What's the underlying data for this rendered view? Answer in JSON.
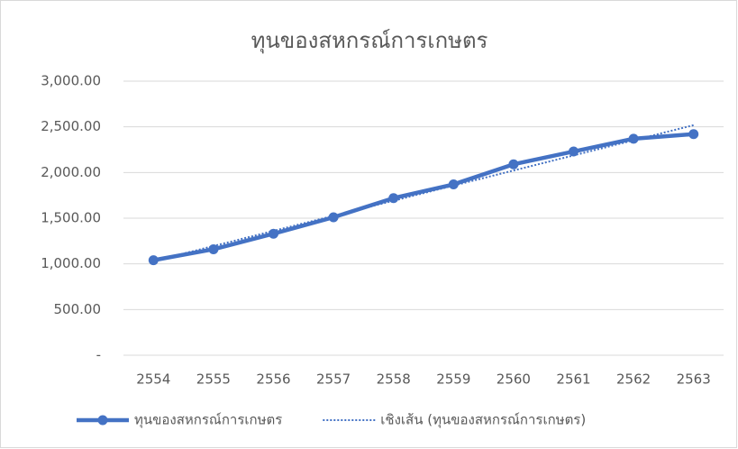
{
  "chart_data": {
    "type": "line",
    "title": "ทุนของสหกรณ์การเกษตร",
    "categories": [
      "2554",
      "2555",
      "2556",
      "2557",
      "2558",
      "2559",
      "2560",
      "2561",
      "2562",
      "2563"
    ],
    "series": [
      {
        "name": "ทุนของสหกรณ์การเกษตร",
        "color": "#4472c4",
        "values": [
          1040,
          1160,
          1330,
          1510,
          1720,
          1870,
          2090,
          2230,
          2370,
          2420
        ]
      },
      {
        "name": "เชิงเส้น (ทุนของสหกรณ์การเกษตร)",
        "color": "#4472c4",
        "dashed": true,
        "values": [
          1030,
          1195,
          1361,
          1526,
          1691,
          1857,
          2022,
          2187,
          2353,
          2518
        ]
      }
    ],
    "ylim": [
      0,
      3000
    ],
    "yticks": [
      {
        "value": 0,
        "label": "-"
      },
      {
        "value": 500,
        "label": "500.00"
      },
      {
        "value": 1000,
        "label": "1,000.00"
      },
      {
        "value": 1500,
        "label": "1,500.00"
      },
      {
        "value": 2000,
        "label": "2,000.00"
      },
      {
        "value": 2500,
        "label": "2,500.00"
      },
      {
        "value": 3000,
        "label": "3,000.00"
      }
    ],
    "grid": true,
    "legend": "bottom"
  }
}
